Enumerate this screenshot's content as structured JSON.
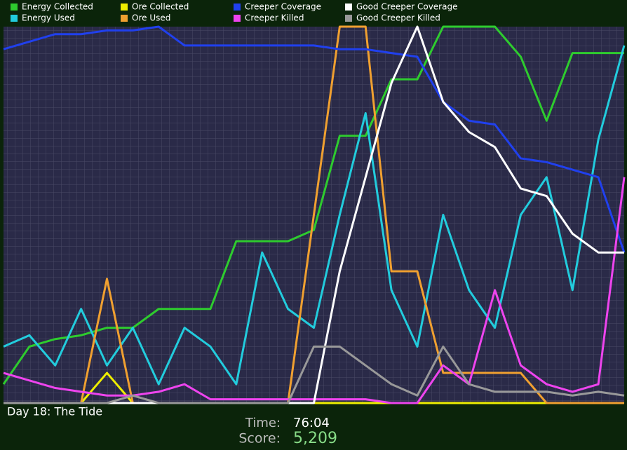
{
  "chart_data": {
    "type": "line",
    "ylim": [
      0,
      100
    ],
    "series": [
      {
        "name": "Energy Collected",
        "color": "#2ecc2e",
        "values": [
          5,
          15,
          17,
          18,
          20,
          20,
          25,
          25,
          25,
          43,
          43,
          43,
          46,
          71,
          71,
          86,
          86,
          100,
          100,
          100,
          92,
          75,
          93,
          93,
          93
        ]
      },
      {
        "name": "Energy Used",
        "color": "#22ccdd",
        "values": [
          15,
          18,
          10,
          25,
          10,
          20,
          5,
          20,
          15,
          5,
          40,
          25,
          20,
          50,
          77,
          30,
          15,
          50,
          30,
          20,
          50,
          60,
          30,
          70,
          95
        ]
      },
      {
        "name": "Ore Collected",
        "color": "#eeee00",
        "values": [
          0,
          0,
          0,
          0,
          8,
          0,
          0,
          0,
          0,
          0,
          0,
          0,
          0,
          0,
          0,
          0,
          0,
          0,
          0,
          0,
          0,
          0,
          0,
          0,
          0
        ]
      },
      {
        "name": "Ore Used",
        "color": "#f0a030",
        "values": [
          0,
          0,
          0,
          0,
          33,
          0,
          0,
          0,
          0,
          0,
          0,
          0,
          50,
          100,
          100,
          35,
          35,
          8,
          8,
          8,
          8,
          0,
          0,
          0,
          0
        ]
      },
      {
        "name": "Creeper Coverage",
        "color": "#2040ee",
        "values": [
          94,
          96,
          98,
          98,
          99,
          99,
          100,
          95,
          95,
          95,
          95,
          95,
          95,
          94,
          94,
          93,
          92,
          80,
          75,
          74,
          65,
          64,
          62,
          60,
          40
        ]
      },
      {
        "name": "Creeper Killed",
        "color": "#ee44ee",
        "values": [
          8,
          6,
          4,
          3,
          2,
          2,
          3,
          5,
          1,
          1,
          1,
          1,
          1,
          1,
          1,
          0,
          0,
          10,
          5,
          30,
          10,
          5,
          3,
          5,
          60
        ]
      },
      {
        "name": "Good Creeper Coverage",
        "color": "#ffffff",
        "values": [
          0,
          0,
          0,
          0,
          0,
          0,
          0,
          0,
          0,
          0,
          0,
          0,
          0,
          35,
          60,
          85,
          100,
          80,
          72,
          68,
          57,
          55,
          45,
          40,
          40
        ]
      },
      {
        "name": "Good Creeper Killed",
        "color": "#999999",
        "values": [
          0,
          0,
          0,
          0,
          0,
          2,
          0,
          0,
          0,
          0,
          0,
          0,
          15,
          15,
          10,
          5,
          2,
          15,
          5,
          3,
          3,
          3,
          2,
          3,
          2
        ]
      }
    ],
    "level": "Day 18: The Tide",
    "time_label": "Time:",
    "time": "76:04",
    "score_label": "Score:",
    "score": "5,209"
  }
}
